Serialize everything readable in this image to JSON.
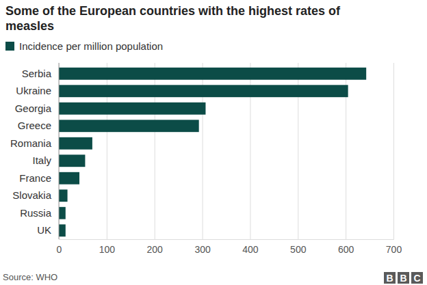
{
  "chart_data": {
    "type": "bar",
    "orientation": "horizontal",
    "title": "Some of the European countries with the highest rates of measles",
    "categories": [
      "Serbia",
      "Ukraine",
      "Georgia",
      "Greece",
      "Romania",
      "Italy",
      "France",
      "Slovakia",
      "Russia",
      "UK"
    ],
    "series": [
      {
        "name": "Incidence per million population",
        "color": "#0c4c47",
        "values": [
          643,
          605,
          307,
          293,
          70,
          55,
          43,
          18,
          14,
          14
        ]
      }
    ],
    "xlim": [
      0,
      700
    ],
    "xticks": [
      0,
      100,
      200,
      300,
      400,
      500,
      600,
      700
    ],
    "grid": true,
    "source": "Source: WHO",
    "logo": "BBC"
  }
}
